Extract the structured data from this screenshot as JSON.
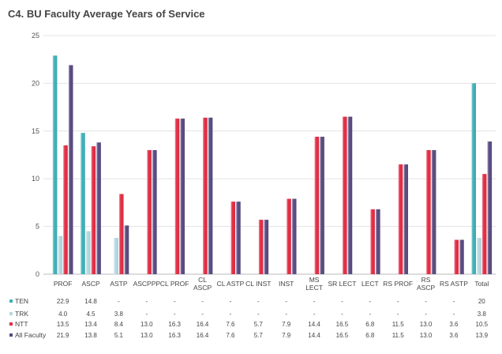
{
  "chart_data": {
    "type": "bar",
    "title": "C4. BU Faculty Average Years of Service",
    "ylim": [
      0,
      25
    ],
    "yticks": [
      0,
      5,
      10,
      15,
      20,
      25
    ],
    "grid": true,
    "categories": [
      [
        "PROF"
      ],
      [
        "ASCP"
      ],
      [
        "ASTP"
      ],
      [
        "ASCPPP"
      ],
      [
        "CL PROF"
      ],
      [
        "CL",
        "ASCP"
      ],
      [
        "CL ASTP"
      ],
      [
        "CL INST"
      ],
      [
        "INST"
      ],
      [
        "MS",
        "LECT"
      ],
      [
        "SR LECT"
      ],
      [
        "LECT"
      ],
      [
        "RS PROF"
      ],
      [
        "RS",
        "ASCP"
      ],
      [
        "RS ASTP"
      ],
      [
        "Total"
      ]
    ],
    "series": [
      {
        "name": "TEN",
        "color": "#3fb1b8",
        "values": [
          22.9,
          14.8,
          null,
          null,
          null,
          null,
          null,
          null,
          null,
          null,
          null,
          null,
          null,
          null,
          null,
          20
        ],
        "labels": [
          "22.9",
          "14.8",
          "-",
          "-",
          "-",
          "-",
          "-",
          "-",
          "-",
          "-",
          "-",
          "-",
          "-",
          "-",
          "-",
          "20"
        ]
      },
      {
        "name": "TRK",
        "color": "#b5d8e0",
        "values": [
          4.0,
          4.5,
          3.8,
          null,
          null,
          null,
          null,
          null,
          null,
          null,
          null,
          null,
          null,
          null,
          null,
          3.8
        ],
        "labels": [
          "4.0",
          "4.5",
          "3.8",
          "-",
          "-",
          "-",
          "-",
          "-",
          "-",
          "-",
          "-",
          "-",
          "-",
          "-",
          "-",
          "3.8"
        ]
      },
      {
        "name": "NTT",
        "color": "#e42c44",
        "values": [
          13.5,
          13.4,
          8.4,
          13.0,
          16.3,
          16.4,
          7.6,
          5.7,
          7.9,
          14.4,
          16.5,
          6.8,
          11.5,
          13.0,
          3.6,
          10.5
        ],
        "labels": [
          "13.5",
          "13.4",
          "8.4",
          "13.0",
          "16.3",
          "16.4",
          "7.6",
          "5.7",
          "7.9",
          "14.4",
          "16.5",
          "6.8",
          "11.5",
          "13.0",
          "3.6",
          "10.5"
        ]
      },
      {
        "name": "All Faculty",
        "color": "#594a80",
        "values": [
          21.9,
          13.8,
          5.1,
          13.0,
          16.3,
          16.4,
          7.6,
          5.7,
          7.9,
          14.4,
          16.5,
          6.8,
          11.5,
          13.0,
          3.6,
          13.9
        ],
        "labels": [
          "21.9",
          "13.8",
          "5.1",
          "13.0",
          "16.3",
          "16.4",
          "7.6",
          "5.7",
          "7.9",
          "14.4",
          "16.5",
          "6.8",
          "11.5",
          "13.0",
          "3.6",
          "13.9"
        ]
      }
    ]
  }
}
